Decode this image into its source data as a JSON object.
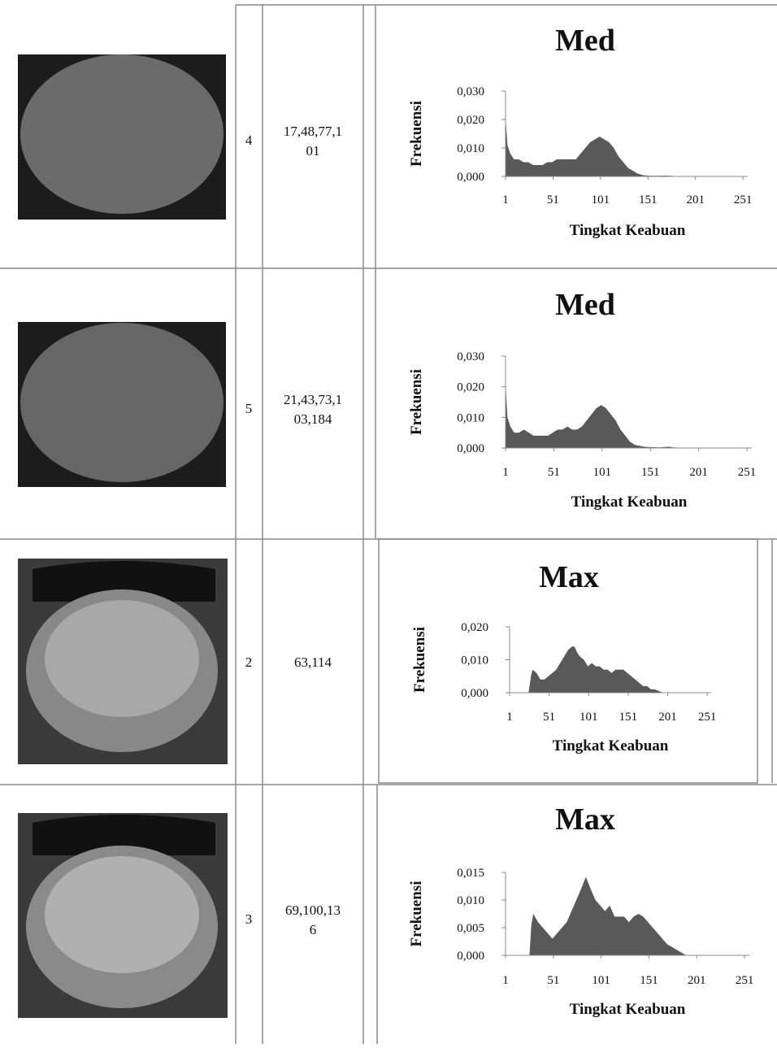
{
  "table": {
    "rows": [
      {
        "number": "4",
        "thresholds": "17,48,77,1",
        "thresholds_cont": "01"
      },
      {
        "number": "5",
        "thresholds": "21,43,73,1",
        "thresholds_cont": "03,184"
      },
      {
        "number": "2",
        "thresholds": "63,114"
      },
      {
        "number": "3",
        "thresholds": "69,100,13",
        "thresholds_cont": "6"
      }
    ]
  },
  "chart_data": [
    {
      "type": "area",
      "title": "Med",
      "x_label": "Tingkat Keabuan",
      "y_label": "Frekuensi",
      "color": "#595959",
      "x": [
        1,
        3,
        6,
        10,
        15,
        20,
        25,
        30,
        35,
        40,
        45,
        50,
        55,
        60,
        65,
        70,
        75,
        80,
        85,
        90,
        95,
        100,
        105,
        110,
        115,
        120,
        125,
        130,
        135,
        140,
        145,
        150,
        160,
        170,
        175,
        180,
        200,
        256
      ],
      "values": [
        0.021,
        0.011,
        0.008,
        0.006,
        0.006,
        0.005,
        0.005,
        0.004,
        0.004,
        0.004,
        0.005,
        0.005,
        0.006,
        0.006,
        0.006,
        0.006,
        0.006,
        0.008,
        0.01,
        0.012,
        0.013,
        0.014,
        0.013,
        0.012,
        0.01,
        0.007,
        0.005,
        0.003,
        0.002,
        0.001,
        0.0005,
        0.0003,
        0.0002,
        0.0003,
        0.0002,
        0.0001,
        0,
        0
      ],
      "xlim": [
        1,
        256
      ],
      "ylim": [
        0,
        0.03
      ],
      "xticks": [
        1,
        51,
        101,
        151,
        201,
        251
      ],
      "yticks": [
        {
          "value": 0,
          "label": "0,000"
        },
        {
          "value": 0.01,
          "label": "0,010"
        },
        {
          "value": 0.02,
          "label": "0,020"
        },
        {
          "value": 0.03,
          "label": "0,030"
        }
      ]
    },
    {
      "type": "area",
      "title": "Med",
      "x_label": "Tingkat Keabuan",
      "y_label": "Frekuensi",
      "color": "#595959",
      "x": [
        1,
        3,
        6,
        10,
        15,
        20,
        25,
        30,
        35,
        40,
        45,
        50,
        55,
        60,
        65,
        70,
        75,
        80,
        85,
        90,
        95,
        100,
        105,
        110,
        115,
        120,
        125,
        130,
        135,
        140,
        145,
        150,
        160,
        170,
        175,
        180,
        200,
        256
      ],
      "values": [
        0.021,
        0.01,
        0.007,
        0.005,
        0.005,
        0.006,
        0.005,
        0.004,
        0.004,
        0.004,
        0.004,
        0.005,
        0.006,
        0.006,
        0.007,
        0.006,
        0.006,
        0.007,
        0.009,
        0.011,
        0.013,
        0.014,
        0.013,
        0.011,
        0.009,
        0.006,
        0.004,
        0.002,
        0.001,
        0.0007,
        0.0004,
        0.0003,
        0.0002,
        0.0004,
        0.0002,
        0.0001,
        0,
        0
      ],
      "xlim": [
        1,
        256
      ],
      "ylim": [
        0,
        0.03
      ],
      "xticks": [
        1,
        51,
        101,
        151,
        201,
        251
      ],
      "yticks": [
        {
          "value": 0,
          "label": "0,000"
        },
        {
          "value": 0.01,
          "label": "0,010"
        },
        {
          "value": 0.02,
          "label": "0,020"
        },
        {
          "value": 0.03,
          "label": "0,030"
        }
      ]
    },
    {
      "type": "area",
      "title": "Max",
      "x_label": "Tingkat Keabuan",
      "y_label": "Frekuensi",
      "color": "#595959",
      "x": [
        1,
        25,
        28,
        30,
        35,
        40,
        45,
        50,
        55,
        60,
        65,
        70,
        75,
        80,
        83,
        87,
        90,
        95,
        100,
        105,
        110,
        115,
        120,
        125,
        130,
        135,
        140,
        145,
        150,
        155,
        160,
        165,
        170,
        175,
        180,
        185,
        190,
        195,
        256
      ],
      "values": [
        0,
        0,
        0.005,
        0.007,
        0.006,
        0.004,
        0.004,
        0.005,
        0.006,
        0.007,
        0.009,
        0.011,
        0.013,
        0.014,
        0.014,
        0.012,
        0.011,
        0.01,
        0.008,
        0.009,
        0.008,
        0.008,
        0.007,
        0.007,
        0.006,
        0.007,
        0.007,
        0.007,
        0.006,
        0.005,
        0.004,
        0.003,
        0.002,
        0.002,
        0.001,
        0.001,
        0.0005,
        0,
        0
      ],
      "xlim": [
        1,
        256
      ],
      "ylim": [
        0,
        0.02
      ],
      "xticks": [
        1,
        51,
        101,
        151,
        201,
        251
      ],
      "yticks": [
        {
          "value": 0,
          "label": "0,000"
        },
        {
          "value": 0.01,
          "label": "0,010"
        },
        {
          "value": 0.02,
          "label": "0,020"
        }
      ]
    },
    {
      "type": "area",
      "title": "Max",
      "x_label": "Tingkat Keabuan",
      "y_label": "Frekuensi",
      "color": "#595959",
      "x": [
        1,
        26,
        28,
        30,
        35,
        40,
        45,
        50,
        55,
        60,
        65,
        70,
        75,
        80,
        85,
        90,
        95,
        100,
        105,
        110,
        115,
        120,
        125,
        130,
        135,
        140,
        145,
        150,
        155,
        160,
        165,
        170,
        175,
        180,
        185,
        190,
        256
      ],
      "values": [
        0,
        0,
        0.0055,
        0.0075,
        0.006,
        0.005,
        0.004,
        0.003,
        0.004,
        0.005,
        0.006,
        0.008,
        0.01,
        0.012,
        0.0142,
        0.012,
        0.01,
        0.009,
        0.008,
        0.009,
        0.007,
        0.007,
        0.007,
        0.006,
        0.007,
        0.0075,
        0.007,
        0.006,
        0.005,
        0.004,
        0.003,
        0.002,
        0.0015,
        0.001,
        0.0005,
        0,
        0
      ],
      "xlim": [
        1,
        256
      ],
      "ylim": [
        0,
        0.015
      ],
      "xticks": [
        1,
        51,
        101,
        151,
        201,
        251
      ],
      "yticks": [
        {
          "value": 0,
          "label": "0,000"
        },
        {
          "value": 0.005,
          "label": "0,005"
        },
        {
          "value": 0.01,
          "label": "0,010"
        },
        {
          "value": 0.015,
          "label": "0,015"
        }
      ]
    }
  ]
}
